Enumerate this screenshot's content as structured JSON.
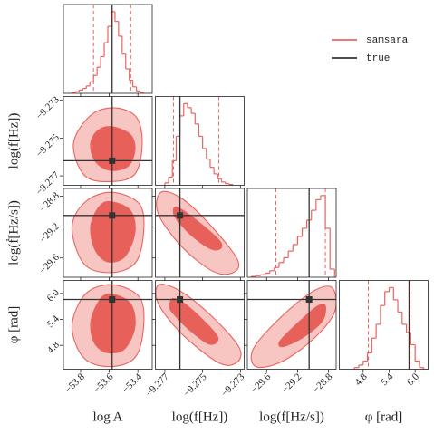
{
  "chart_data": {
    "type": "corner",
    "legend": "upper right",
    "series": [
      {
        "name": "samsara",
        "color": "#e8645f"
      },
      {
        "name": "true",
        "color": "#333333"
      }
    ],
    "contour_colors": [
      "#f7c6c3",
      "#e8605a"
    ],
    "parameters": [
      {
        "label": "log A",
        "lim": [
          -53.92,
          -53.3
        ],
        "ticks": [
          {
            "value": -53.8,
            "label": "−53.8"
          },
          {
            "value": -53.6,
            "label": "−53.6"
          },
          {
            "value": -53.4,
            "label": "−53.4"
          }
        ],
        "truth": -53.58,
        "quantiles": [
          -53.71,
          -53.45
        ],
        "bins": [
          -53.86,
          -53.835,
          -53.81,
          -53.785,
          -53.76,
          -53.735,
          -53.71,
          -53.685,
          -53.66,
          -53.635,
          -53.61,
          -53.585,
          -53.56,
          -53.535,
          -53.51,
          -53.485,
          -53.46,
          -53.435,
          -53.41,
          -53.385,
          -53.36
        ],
        "counts": [
          1,
          2,
          4,
          6,
          9,
          14,
          22,
          32,
          45,
          62,
          82,
          100,
          88,
          70,
          48,
          30,
          16,
          8,
          3,
          1
        ]
      },
      {
        "label": "log(f[Hz])",
        "lim": [
          -9.2775,
          -9.2728
        ],
        "ticks": [
          {
            "value": -9.277,
            "label": "−9.277"
          },
          {
            "value": -9.275,
            "label": "−9.275"
          },
          {
            "value": -9.273,
            "label": "−9.273"
          }
        ],
        "truth": -9.2762,
        "quantiles": [
          -9.27654,
          -9.27414
        ],
        "bins": [
          -9.277,
          -9.2768,
          -9.2766,
          -9.2764,
          -9.2762,
          -9.276,
          -9.2758,
          -9.2756,
          -9.2754,
          -9.2752,
          -9.275,
          -9.2748,
          -9.2746,
          -9.2744,
          -9.2742,
          -9.274,
          -9.2738,
          -9.2736,
          -9.2734
        ],
        "counts": [
          3,
          10,
          30,
          60,
          85,
          100,
          95,
          88,
          75,
          60,
          45,
          32,
          22,
          14,
          8,
          4,
          2,
          1
        ]
      },
      {
        "label": "log(ḟ[Hz/s])",
        "lim": [
          -29.85,
          -28.7
        ],
        "ticks": [
          {
            "value": -29.6,
            "label": "−29.6"
          },
          {
            "value": -29.2,
            "label": "−29.2"
          },
          {
            "value": -28.8,
            "label": "−28.8"
          }
        ],
        "truth": -29.05,
        "quantiles": [
          -29.48,
          -28.84
        ],
        "bins": [
          -29.8,
          -29.74,
          -29.68,
          -29.62,
          -29.56,
          -29.5,
          -29.44,
          -29.38,
          -29.32,
          -29.26,
          -29.2,
          -29.14,
          -29.08,
          -29.02,
          -28.96,
          -28.9,
          -28.84,
          -28.78,
          -28.72
        ],
        "counts": [
          1,
          2,
          3,
          5,
          8,
          12,
          18,
          24,
          32,
          40,
          50,
          60,
          70,
          82,
          95,
          100,
          60,
          10
        ]
      },
      {
        "label": "φ [rad]",
        "lim": [
          4.25,
          6.3
        ],
        "ticks": [
          4.8,
          5.4,
          {
            "value": 6,
            "label": "6.0"
          }
        ],
        "truth": 5.86,
        "quantiles": [
          4.92,
          5.88
        ],
        "bins": [
          4.6,
          4.7,
          4.8,
          4.9,
          5.0,
          5.1,
          5.2,
          5.3,
          5.4,
          5.5,
          5.6,
          5.7,
          5.8,
          5.9,
          6.0,
          6.1,
          6.2
        ],
        "counts": [
          2,
          5,
          10,
          20,
          38,
          55,
          78,
          95,
          100,
          85,
          70,
          55,
          45,
          30,
          10,
          2
        ]
      }
    ],
    "joint": [
      [
        {
          "levels": [
            {
              "x": [
                -53.56,
                -53.41,
                -53.37,
                -53.42,
                -53.58,
                -53.77,
                -53.85,
                -53.73
              ],
              "y": [
                -9.2734,
                -9.2739,
                -9.2753,
                -9.2769,
                -9.2773,
                -9.277,
                -9.2753,
                -9.2738
              ]
            },
            {
              "x": [
                -53.58,
                -53.455,
                -53.42,
                -53.47,
                -53.6,
                -53.7,
                -53.73,
                -53.68
              ],
              "y": [
                -9.2744,
                -9.2748,
                -9.2756,
                -9.2765,
                -9.2767,
                -9.2762,
                -9.2753,
                -9.2746
              ]
            }
          ]
        }
      ],
      [
        {
          "levels": [
            {
              "x": [
                -53.58,
                -53.39,
                -53.36,
                -53.42,
                -53.6,
                -53.78,
                -53.86,
                -53.765
              ],
              "y": [
                -28.75,
                -28.9,
                -29.26,
                -29.67,
                -29.79,
                -29.67,
                -29.2,
                -28.87
              ]
            },
            {
              "x": [
                -53.6,
                -53.455,
                -53.42,
                -53.49,
                -53.61,
                -53.7,
                -53.73,
                -53.68
              ],
              "y": [
                -28.87,
                -28.98,
                -29.26,
                -29.58,
                -29.65,
                -29.49,
                -29.2,
                -28.96
              ]
            }
          ]
        },
        {
          "levels": [
            {
              "x": [
                -9.27721,
                -9.27616,
                -9.27472,
                -9.27318,
                -9.27338,
                -9.27448,
                -9.27616,
                -9.27736
              ],
              "y": [
                -28.75,
                -28.82,
                -29.14,
                -29.61,
                -29.79,
                -29.77,
                -29.44,
                -29.02
              ]
            },
            {
              "x": [
                -9.2764,
                -9.2756,
                -9.27424,
                -9.274,
                -9.27448,
                -9.27544,
                -9.27625,
                -9.27654
              ],
              "y": [
                -28.94,
                -29.06,
                -29.34,
                -29.46,
                -29.49,
                -29.34,
                -29.14,
                -29.02
              ]
            }
          ]
        }
      ],
      [
        {
          "levels": [
            {
              "x": [
                -53.58,
                -53.39,
                -53.36,
                -53.42,
                -53.6,
                -53.78,
                -53.86,
                -53.765
              ],
              "y": [
                6.2,
                5.92,
                5.25,
                4.52,
                4.31,
                4.52,
                5.25,
                5.99
              ]
            },
            {
              "x": [
                -53.6,
                -53.455,
                -53.42,
                -53.49,
                -53.61,
                -53.7,
                -53.73,
                -53.68
              ],
              "y": [
                5.99,
                5.78,
                5.25,
                4.73,
                4.63,
                4.84,
                5.3,
                5.78
              ]
            }
          ]
        },
        {
          "levels": [
            {
              "x": [
                -9.27731,
                -9.27616,
                -9.27448,
                -9.27304,
                -9.27328,
                -9.27424,
                -9.27616,
                -9.27736
              ],
              "y": [
                6.2,
                6.05,
                5.46,
                4.73,
                4.38,
                4.42,
                5.09,
                5.78
              ]
            },
            {
              "x": [
                -9.27654,
                -9.27568,
                -9.27434,
                -9.27424,
                -9.27472,
                -9.27568,
                -9.2764,
                -9.27674
              ],
              "y": [
                5.88,
                5.67,
                5.09,
                4.88,
                4.84,
                5.15,
                5.46,
                5.67
              ]
            }
          ]
        },
        {
          "levels": [
            {
              "x": [
                -29.77,
                -29.41,
                -28.998,
                -28.75,
                -28.72,
                -29.0,
                -29.41,
                -29.74
              ],
              "y": [
                4.73,
                5.46,
                6.05,
                6.13,
                5.57,
                4.94,
                4.42,
                4.31
              ]
            },
            {
              "x": [
                -29.41,
                -29.17,
                -28.94,
                -28.84,
                -28.88,
                -29.115,
                -29.35,
                -29.435
              ],
              "y": [
                4.94,
                5.36,
                5.71,
                5.71,
                5.36,
                5.0,
                4.79,
                4.79
              ]
            }
          ]
        }
      ]
    ]
  }
}
